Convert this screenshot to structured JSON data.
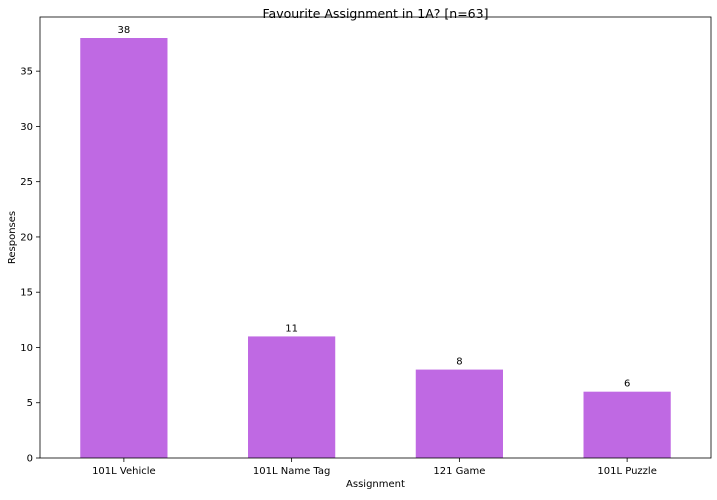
{
  "chart_data": {
    "type": "bar",
    "title": "Favourite Assignment in 1A? [n=63]",
    "xlabel": "Assignment",
    "ylabel": "Responses",
    "categories": [
      "101L Vehicle",
      "101L Name Tag",
      "121 Game",
      "101L Puzzle"
    ],
    "values": [
      38,
      11,
      8,
      6
    ],
    "data_labels": [
      "38",
      "11",
      "8",
      "6"
    ],
    "ylim": [
      0,
      39.9
    ],
    "yticks": [
      0,
      5,
      10,
      15,
      20,
      25,
      30,
      35
    ],
    "grid": false,
    "legend": "none",
    "bar_color": "#bf69e3"
  }
}
